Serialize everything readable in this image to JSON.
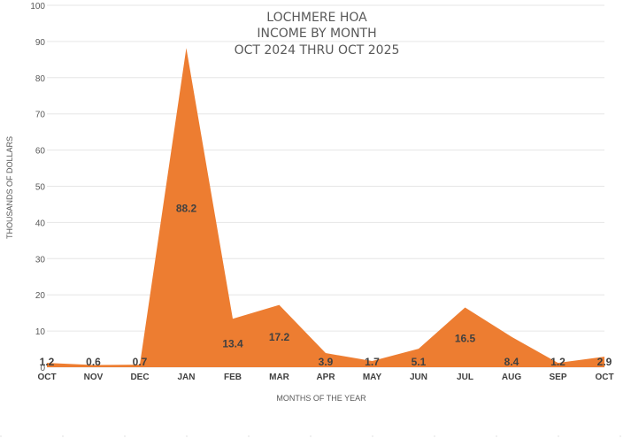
{
  "chart_data": {
    "type": "area",
    "title": [
      "LOCHMERE HOA",
      "INCOME BY MONTH",
      "OCT 2024 THRU OCT 2025"
    ],
    "xlabel": "MONTHS OF THE YEAR",
    "ylabel": "THOUSANDS OF DOLLARS",
    "ylim": [
      0,
      100
    ],
    "yticks": [
      0,
      10,
      20,
      30,
      40,
      50,
      60,
      70,
      80,
      90,
      100
    ],
    "categories": [
      "OCT",
      "NOV",
      "DEC",
      "JAN",
      "FEB",
      "MAR",
      "APR",
      "MAY",
      "JUN",
      "JUL",
      "AUG",
      "SEP",
      "OCT"
    ],
    "values": [
      1.2,
      0.6,
      0.7,
      88.2,
      13.4,
      17.2,
      3.9,
      1.7,
      5.1,
      16.5,
      8.4,
      1.2,
      2.9
    ],
    "data_labels": [
      "1.2",
      "0.6",
      "0.7",
      "88.2",
      "13.4",
      "17.2",
      "3.9",
      "1.7",
      "5.1",
      "16.5",
      "8.4",
      "1.2",
      "2.9"
    ],
    "fill_color": "#ED7D31",
    "grid": true,
    "legend": "none"
  }
}
